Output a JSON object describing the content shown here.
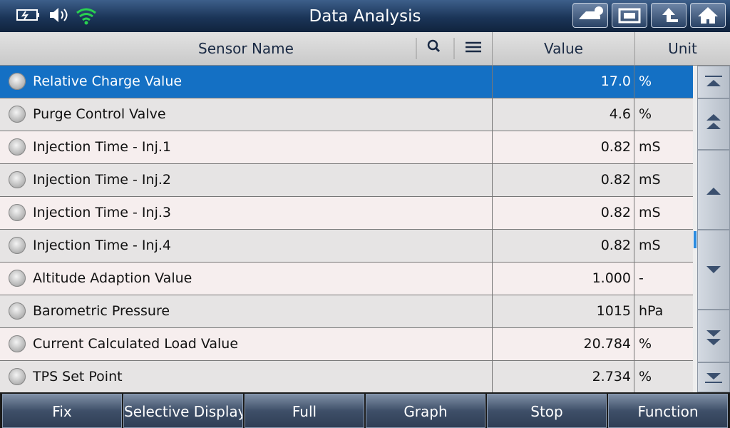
{
  "header": {
    "title": "Data Analysis"
  },
  "table": {
    "columns": [
      "Sensor Name",
      "Value",
      "Unit"
    ],
    "rows": [
      [
        "Relative Charge Value",
        "17.0",
        "%"
      ],
      [
        "Purge Control Valve",
        "4.6",
        "%"
      ],
      [
        "Injection Time - Inj.1",
        "0.82",
        "mS"
      ],
      [
        "Injection Time - Inj.2",
        "0.82",
        "mS"
      ],
      [
        "Injection Time - Inj.3",
        "0.82",
        "mS"
      ],
      [
        "Injection Time - Inj.4",
        "0.82",
        "mS"
      ],
      [
        "Altitude Adaption Value",
        "1.000",
        "-"
      ],
      [
        "Barometric Pressure",
        "1015",
        "hPa"
      ],
      [
        "Current Calculated Load Value",
        "20.784",
        "%"
      ],
      [
        "TPS Set Point",
        "2.734",
        "%"
      ]
    ]
  },
  "footer": {
    "buttons": [
      "Fix",
      "Selective Display",
      "Full",
      "Graph",
      "Stop",
      "Function"
    ]
  }
}
